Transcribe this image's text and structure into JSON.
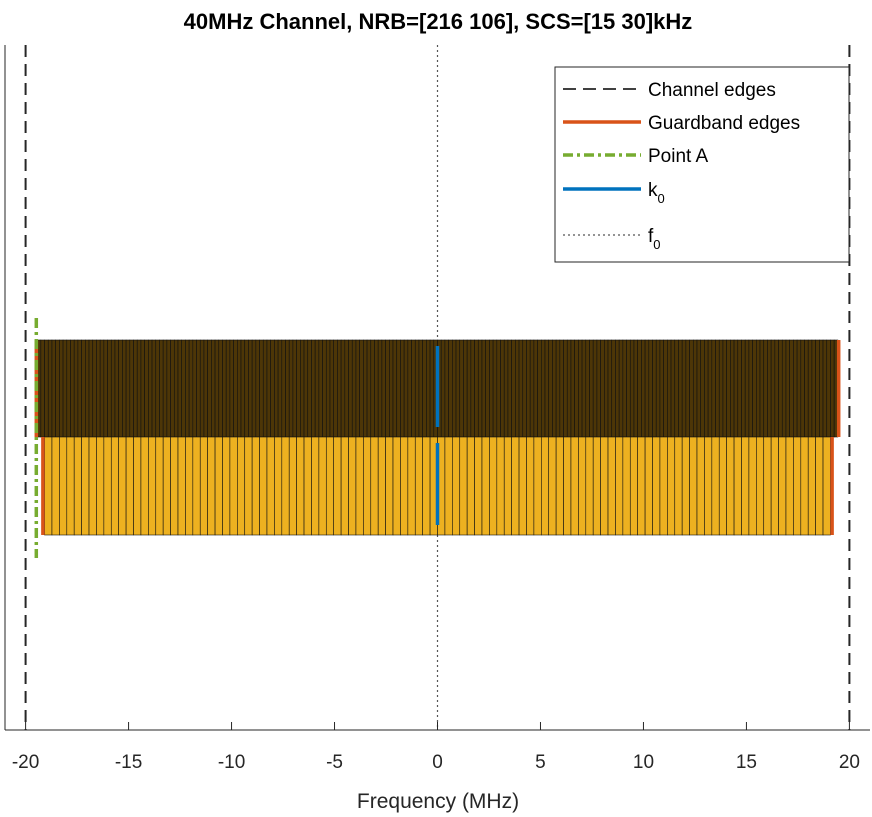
{
  "chart_data": {
    "type": "bar",
    "title": "40MHz Channel,  NRB=[216 106], SCS=[15 30]kHz",
    "xlabel": "Frequency (MHz)",
    "xlim": [
      -21,
      21
    ],
    "xticks": [
      -20,
      -15,
      -10,
      -5,
      0,
      5,
      10,
      15,
      20
    ],
    "xtick_labels": [
      "-20",
      "-15",
      "-10",
      "-5",
      "0",
      "5",
      "10",
      "15",
      "20"
    ],
    "grid": false,
    "legend_position": "top-right",
    "channel_edges_mhz": [
      -20,
      20
    ],
    "f0_mhz": 0,
    "k0_mhz": 0,
    "point_a_mhz": -19.48,
    "carriers": [
      {
        "scs_khz": 15,
        "nrb": 216,
        "rb_start_mhz": -19.44,
        "rb_width_mhz": 0.18,
        "guardband_edges_mhz": [
          -19.48,
          19.48
        ],
        "color": "#4d3607"
      },
      {
        "scs_khz": 30,
        "nrb": 106,
        "rb_start_mhz": -19.08,
        "rb_width_mhz": 0.36,
        "guardband_edges_mhz": [
          -19.16,
          19.16
        ],
        "color": "#edb120"
      }
    ],
    "legend": [
      {
        "label": "Channel edges",
        "style": "dash",
        "color": "#000000"
      },
      {
        "label": "Guardband edges",
        "style": "solid",
        "color": "#d95319"
      },
      {
        "label": "Point A",
        "style": "dashdot",
        "color": "#77ac30"
      },
      {
        "label": "k",
        "sub": "0",
        "style": "solid",
        "color": "#0072bd"
      },
      {
        "label": "f",
        "sub": "0",
        "style": "dot",
        "color": "#000000"
      }
    ]
  }
}
